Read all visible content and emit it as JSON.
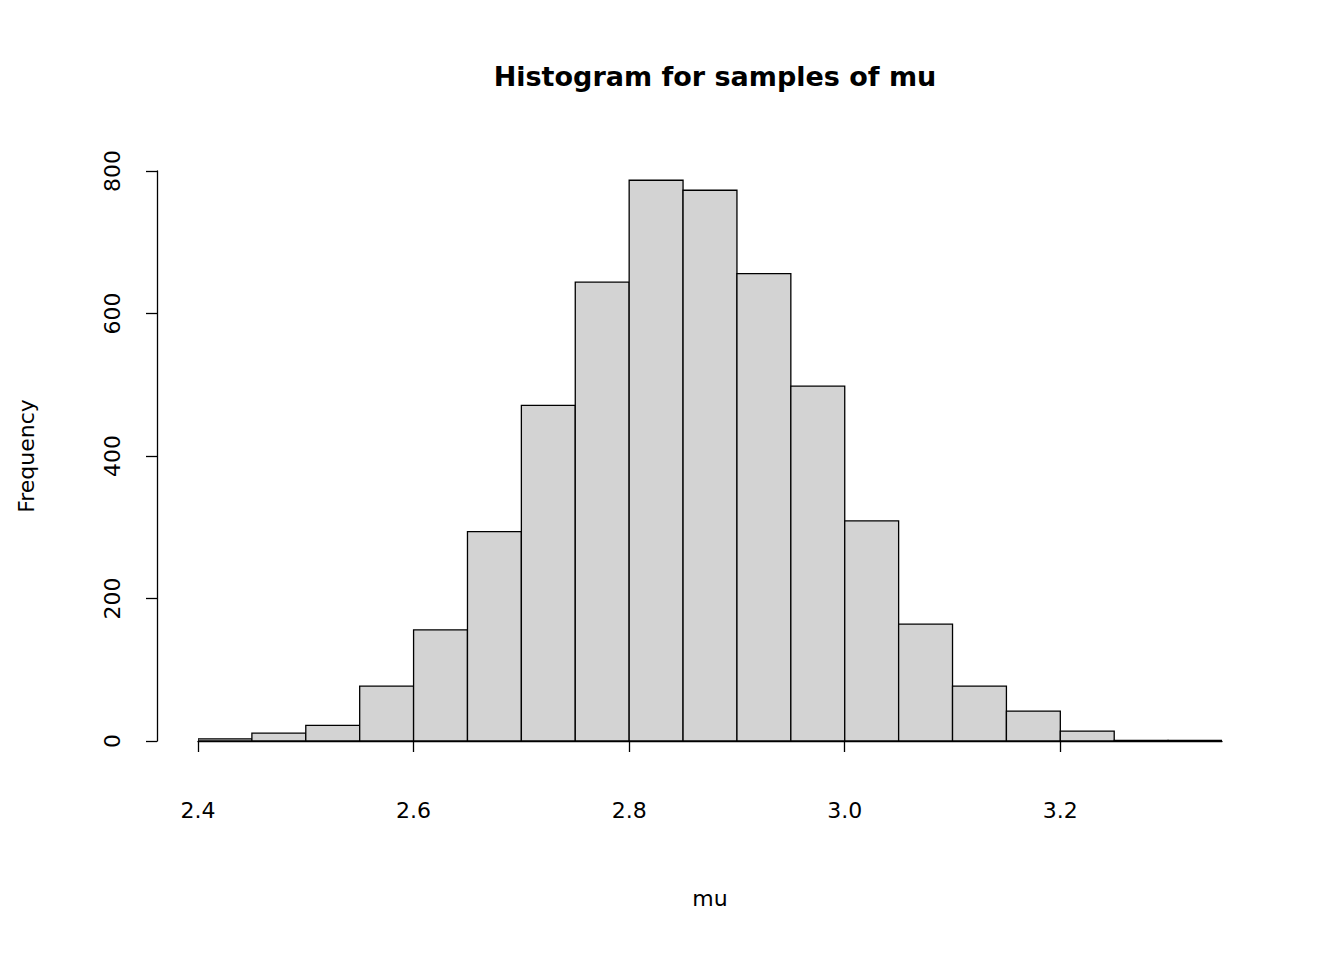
{
  "chart_data": {
    "type": "histogram",
    "title": "Histogram for samples of mu",
    "xlabel": "mu",
    "ylabel": "Frequency",
    "bins": [
      2.4,
      2.45,
      2.5,
      2.55,
      2.6,
      2.65,
      2.7,
      2.75,
      2.8,
      2.85,
      2.9,
      2.95,
      3.0,
      3.05,
      3.1,
      3.15,
      3.2,
      3.25,
      3.3,
      3.35
    ],
    "values": [
      3,
      11,
      22,
      77,
      156,
      294,
      471,
      644,
      787,
      773,
      656,
      498,
      309,
      164,
      77,
      42,
      14,
      1,
      1
    ],
    "color": "#d3d3d3",
    "xlim": [
      2.4,
      3.35
    ],
    "ylim": [
      0,
      800
    ],
    "xticks": [
      2.4,
      2.6,
      2.8,
      {
        "value": 3,
        "label": "3.0"
      },
      3.2
    ],
    "yticks": [
      0,
      200,
      400,
      600,
      800
    ],
    "grid": false
  }
}
